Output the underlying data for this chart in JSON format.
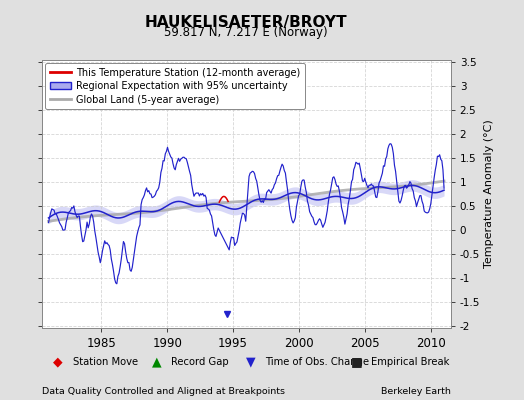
{
  "title": "HAUKELISAETER/BROYT",
  "subtitle": "59.817 N, 7.217 E (Norway)",
  "xlabel_left": "Data Quality Controlled and Aligned at Breakpoints",
  "xlabel_right": "Berkeley Earth",
  "ylabel": "Temperature Anomaly (°C)",
  "xlim": [
    1980.5,
    2011.5
  ],
  "ylim": [
    -2.05,
    3.55
  ],
  "yticks": [
    -2,
    -1.5,
    -1,
    -0.5,
    0,
    0.5,
    1,
    1.5,
    2,
    2.5,
    3,
    3.5
  ],
  "xticks": [
    1985,
    1990,
    1995,
    2000,
    2005,
    2010
  ],
  "bg_color": "#e0e0e0",
  "plot_bg": "#ffffff",
  "grid_color": "#cccccc",
  "regional_color": "#2222cc",
  "regional_shade_color": "#aaaaee",
  "station_color": "#dd0000",
  "global_color": "#aaaaaa",
  "time_of_obs_marker_color": "#2222cc",
  "station_move_color": "#dd0000",
  "record_gap_color": "#008800",
  "empirical_break_color": "#222222"
}
